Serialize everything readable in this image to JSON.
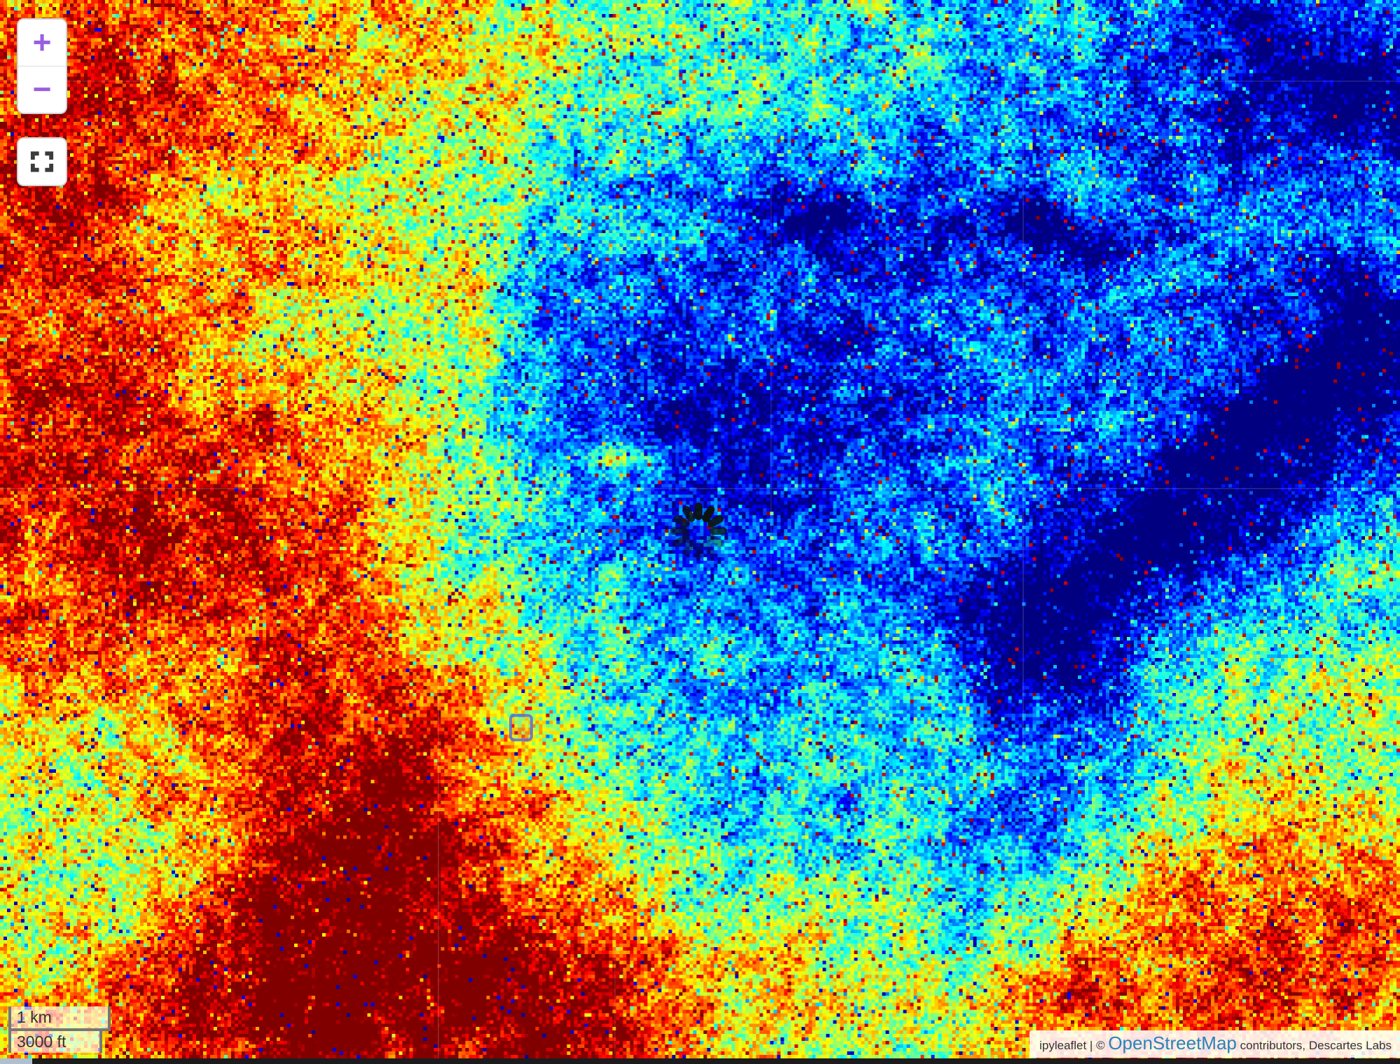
{
  "map": {
    "layer_name": "false-color-raster-jet",
    "status": "loading-tiles"
  },
  "zoom_control": {
    "zoom_in": "+",
    "zoom_out": "−"
  },
  "fullscreen_control": {
    "icon": "fullscreen-expand-icon"
  },
  "scale_control": {
    "metric": "1 km",
    "imperial": "3000 ft"
  },
  "attribution": {
    "prefix": "ipyleaflet | © ",
    "link": "OpenStreetMap",
    "suffix": " contributors, Descartes Labs"
  },
  "colors": {
    "zoom_accent": "#9a5fe0",
    "attribution_link": "#2b82b8",
    "scale_border": "#777777",
    "fullscreen_icon": "#3c3c3c",
    "spinner": "#0c130f",
    "window_strip": "#1c1c1e"
  }
}
